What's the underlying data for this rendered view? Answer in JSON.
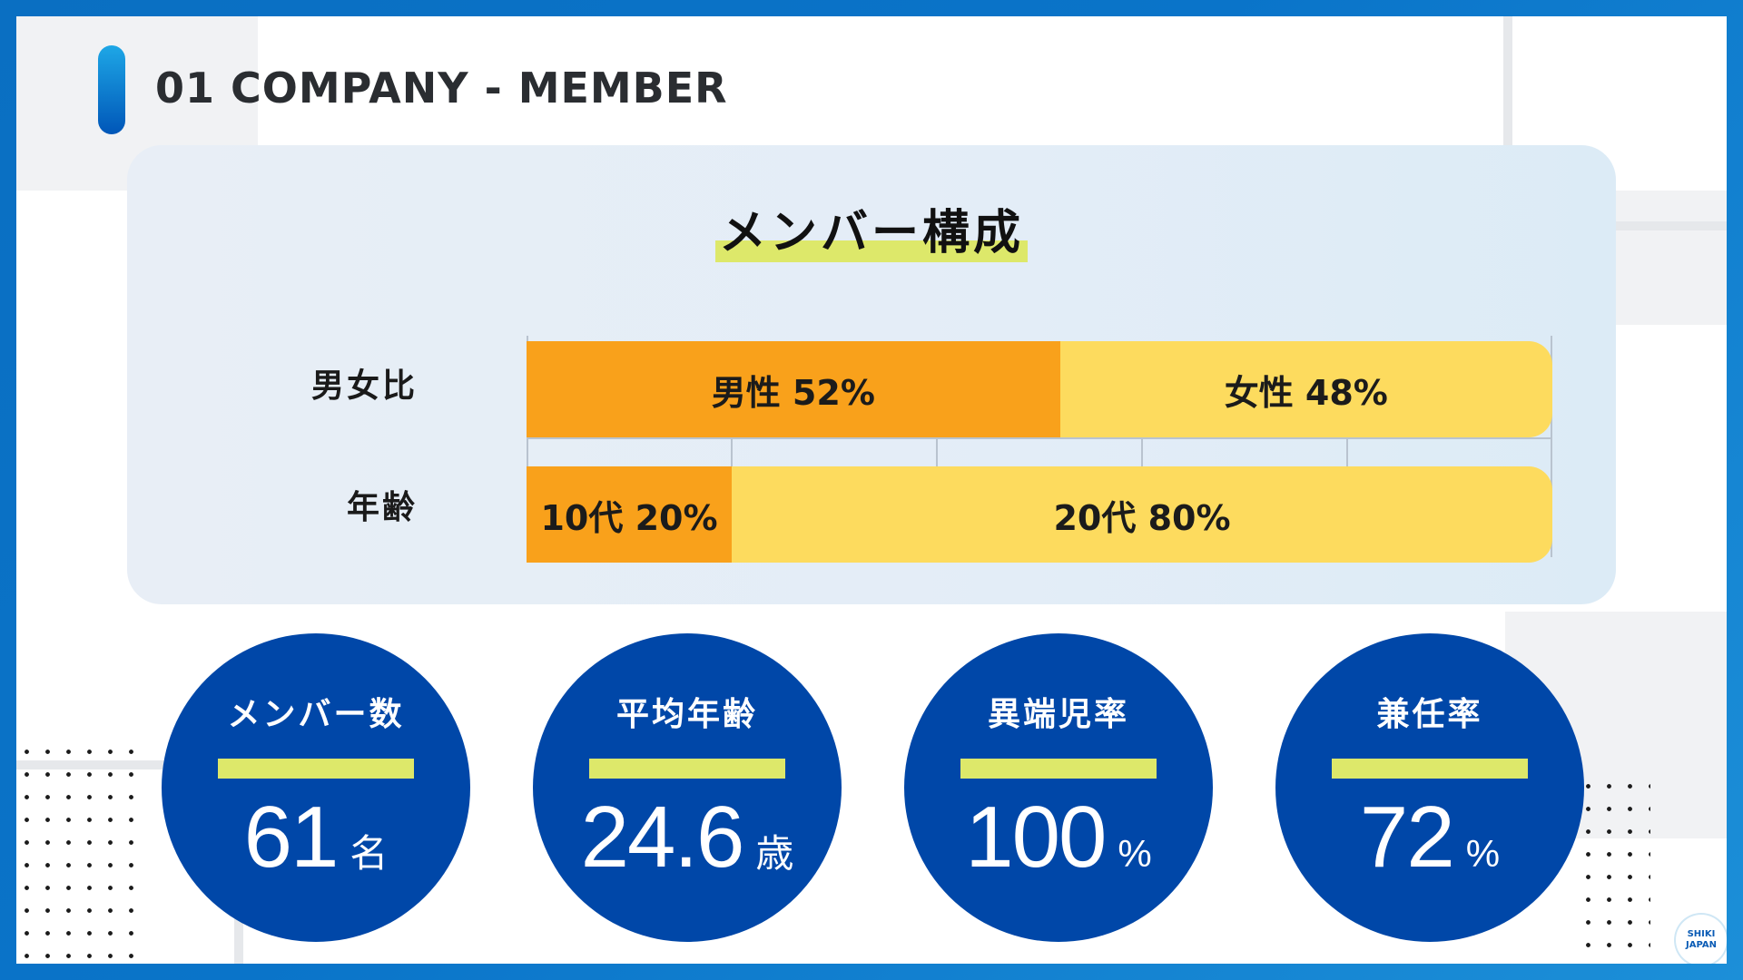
{
  "header": {
    "title": "01 COMPANY - MEMBER"
  },
  "panel": {
    "heading": "メンバー構成",
    "rows": [
      {
        "label": "男女比",
        "segments": [
          {
            "text": "男性  52%",
            "value": 52
          },
          {
            "text": "女性  48%",
            "value": 48
          }
        ]
      },
      {
        "label": "年齢",
        "segments": [
          {
            "text": "10代 20%",
            "value": 20
          },
          {
            "text": "20代 80%",
            "value": 80
          }
        ]
      }
    ]
  },
  "stats": [
    {
      "label": "メンバー数",
      "value": "61",
      "unit": "名"
    },
    {
      "label": "平均年齢",
      "value": "24.6",
      "unit": "歳"
    },
    {
      "label": "異端児率",
      "value": "100",
      "unit": "%"
    },
    {
      "label": "兼任率",
      "value": "72",
      "unit": "%"
    }
  ],
  "logo": {
    "line1": "SHIKI",
    "line2": "JAPAN"
  },
  "colors": {
    "frame": "#0a6fc2",
    "primary_segment": "#f9a11b",
    "secondary_segment": "#fddb5e",
    "stat_circle": "#0047a8",
    "highlight": "#dde86a"
  }
}
